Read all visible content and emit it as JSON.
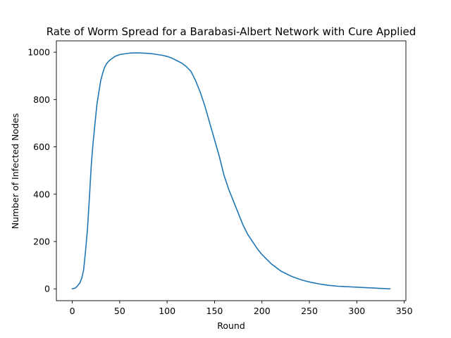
{
  "chart_data": {
    "type": "line",
    "title": "Rate of Worm Spread for a Barabasi-Albert Network with Cure Applied",
    "xlabel": "Round",
    "ylabel": "Number of Infected Nodes",
    "xlim": [
      -16.75,
      351.75
    ],
    "ylim": [
      -50,
      1048
    ],
    "xticks": [
      0,
      50,
      100,
      150,
      200,
      250,
      300,
      350
    ],
    "yticks": [
      0,
      200,
      400,
      600,
      800,
      1000
    ],
    "grid": false,
    "legend": "none",
    "series": [
      {
        "color": "#1f77b4",
        "points": [
          [
            0,
            0
          ],
          [
            3,
            3
          ],
          [
            5,
            10
          ],
          [
            8,
            25
          ],
          [
            10,
            45
          ],
          [
            12,
            80
          ],
          [
            14,
            160
          ],
          [
            16,
            250
          ],
          [
            18,
            380
          ],
          [
            20,
            520
          ],
          [
            22,
            620
          ],
          [
            24,
            700
          ],
          [
            26,
            780
          ],
          [
            28,
            830
          ],
          [
            30,
            880
          ],
          [
            32,
            910
          ],
          [
            34,
            935
          ],
          [
            36,
            950
          ],
          [
            38,
            960
          ],
          [
            40,
            968
          ],
          [
            45,
            982
          ],
          [
            50,
            990
          ],
          [
            55,
            993
          ],
          [
            60,
            996
          ],
          [
            65,
            997
          ],
          [
            70,
            997
          ],
          [
            75,
            996
          ],
          [
            80,
            995
          ],
          [
            85,
            993
          ],
          [
            90,
            990
          ],
          [
            95,
            987
          ],
          [
            100,
            982
          ],
          [
            105,
            975
          ],
          [
            110,
            965
          ],
          [
            115,
            955
          ],
          [
            120,
            940
          ],
          [
            125,
            920
          ],
          [
            130,
            880
          ],
          [
            135,
            830
          ],
          [
            140,
            770
          ],
          [
            145,
            700
          ],
          [
            150,
            630
          ],
          [
            155,
            560
          ],
          [
            160,
            480
          ],
          [
            165,
            420
          ],
          [
            170,
            370
          ],
          [
            175,
            320
          ],
          [
            180,
            270
          ],
          [
            185,
            230
          ],
          [
            190,
            200
          ],
          [
            195,
            170
          ],
          [
            200,
            145
          ],
          [
            205,
            125
          ],
          [
            210,
            105
          ],
          [
            215,
            90
          ],
          [
            220,
            75
          ],
          [
            225,
            65
          ],
          [
            230,
            55
          ],
          [
            235,
            47
          ],
          [
            240,
            40
          ],
          [
            245,
            34
          ],
          [
            250,
            29
          ],
          [
            255,
            25
          ],
          [
            260,
            21
          ],
          [
            265,
            18
          ],
          [
            270,
            15
          ],
          [
            275,
            13
          ],
          [
            280,
            11
          ],
          [
            285,
            10
          ],
          [
            290,
            9
          ],
          [
            295,
            8
          ],
          [
            300,
            7
          ],
          [
            305,
            6
          ],
          [
            310,
            5
          ],
          [
            315,
            4
          ],
          [
            320,
            3
          ],
          [
            325,
            2
          ],
          [
            330,
            1
          ],
          [
            335,
            0
          ]
        ]
      }
    ]
  }
}
